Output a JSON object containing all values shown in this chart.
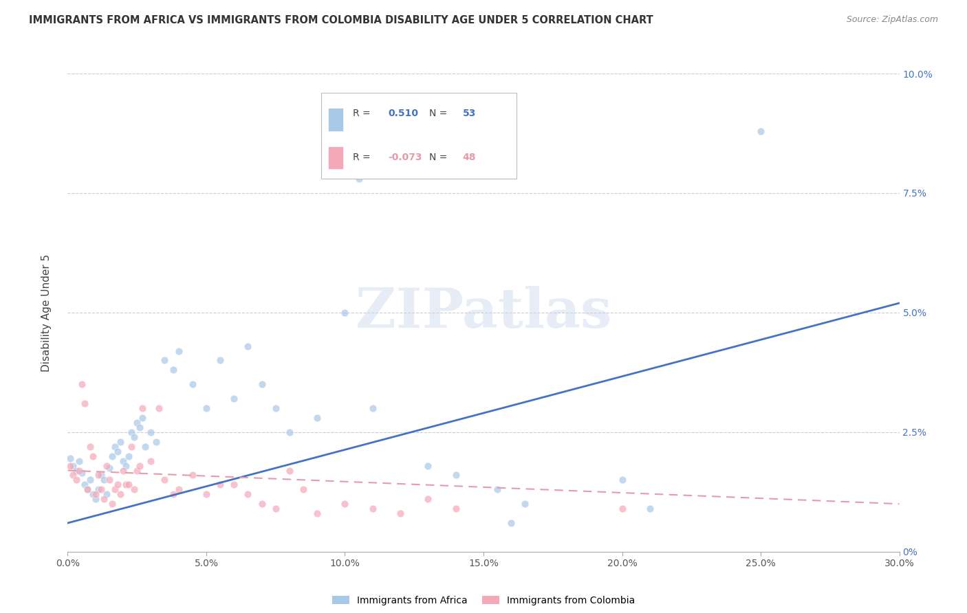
{
  "title": "IMMIGRANTS FROM AFRICA VS IMMIGRANTS FROM COLOMBIA DISABILITY AGE UNDER 5 CORRELATION CHART",
  "source": "Source: ZipAtlas.com",
  "ylabel": "Disability Age Under 5",
  "xlim": [
    0.0,
    0.3
  ],
  "ylim": [
    0.0,
    0.1
  ],
  "xticks": [
    0.0,
    0.05,
    0.1,
    0.15,
    0.2,
    0.25,
    0.3
  ],
  "xticklabels": [
    "0.0%",
    "5.0%",
    "10.0%",
    "15.0%",
    "20.0%",
    "25.0%",
    "30.0%"
  ],
  "yticks": [
    0.0,
    0.025,
    0.05,
    0.075,
    0.1
  ],
  "yticklabels_right": [
    "0%",
    "2.5%",
    "5.0%",
    "7.5%",
    "10.0%"
  ],
  "blue_color": "#A8C8E8",
  "pink_color": "#F4A8B8",
  "blue_line_color": "#4472C4",
  "pink_line_color": "#E89AA8",
  "legend_R_blue": "0.510",
  "legend_N_blue": "53",
  "legend_R_pink": "-0.073",
  "legend_N_pink": "48",
  "watermark": "ZIPatlas",
  "blue_line": [
    0.0,
    0.006,
    0.3,
    0.052
  ],
  "pink_line": [
    0.0,
    0.017,
    0.3,
    0.01
  ],
  "africa_points": [
    [
      0.001,
      0.0195
    ],
    [
      0.002,
      0.018
    ],
    [
      0.003,
      0.017
    ],
    [
      0.004,
      0.019
    ],
    [
      0.005,
      0.0165
    ],
    [
      0.006,
      0.014
    ],
    [
      0.007,
      0.013
    ],
    [
      0.008,
      0.015
    ],
    [
      0.009,
      0.012
    ],
    [
      0.01,
      0.011
    ],
    [
      0.011,
      0.013
    ],
    [
      0.012,
      0.016
    ],
    [
      0.013,
      0.015
    ],
    [
      0.014,
      0.012
    ],
    [
      0.015,
      0.0175
    ],
    [
      0.016,
      0.02
    ],
    [
      0.017,
      0.022
    ],
    [
      0.018,
      0.021
    ],
    [
      0.019,
      0.023
    ],
    [
      0.02,
      0.019
    ],
    [
      0.021,
      0.018
    ],
    [
      0.022,
      0.02
    ],
    [
      0.023,
      0.025
    ],
    [
      0.024,
      0.024
    ],
    [
      0.025,
      0.027
    ],
    [
      0.026,
      0.026
    ],
    [
      0.027,
      0.028
    ],
    [
      0.028,
      0.022
    ],
    [
      0.03,
      0.025
    ],
    [
      0.032,
      0.023
    ],
    [
      0.035,
      0.04
    ],
    [
      0.038,
      0.038
    ],
    [
      0.04,
      0.042
    ],
    [
      0.045,
      0.035
    ],
    [
      0.05,
      0.03
    ],
    [
      0.055,
      0.04
    ],
    [
      0.06,
      0.032
    ],
    [
      0.065,
      0.043
    ],
    [
      0.07,
      0.035
    ],
    [
      0.075,
      0.03
    ],
    [
      0.08,
      0.025
    ],
    [
      0.09,
      0.028
    ],
    [
      0.1,
      0.05
    ],
    [
      0.105,
      0.078
    ],
    [
      0.11,
      0.03
    ],
    [
      0.13,
      0.018
    ],
    [
      0.14,
      0.016
    ],
    [
      0.155,
      0.013
    ],
    [
      0.16,
      0.006
    ],
    [
      0.165,
      0.01
    ],
    [
      0.2,
      0.015
    ],
    [
      0.21,
      0.009
    ],
    [
      0.25,
      0.088
    ]
  ],
  "colombia_points": [
    [
      0.001,
      0.018
    ],
    [
      0.002,
      0.016
    ],
    [
      0.003,
      0.015
    ],
    [
      0.004,
      0.017
    ],
    [
      0.005,
      0.035
    ],
    [
      0.006,
      0.031
    ],
    [
      0.007,
      0.013
    ],
    [
      0.008,
      0.022
    ],
    [
      0.009,
      0.02
    ],
    [
      0.01,
      0.012
    ],
    [
      0.011,
      0.016
    ],
    [
      0.012,
      0.013
    ],
    [
      0.013,
      0.011
    ],
    [
      0.014,
      0.018
    ],
    [
      0.015,
      0.015
    ],
    [
      0.016,
      0.01
    ],
    [
      0.017,
      0.013
    ],
    [
      0.018,
      0.014
    ],
    [
      0.019,
      0.012
    ],
    [
      0.02,
      0.017
    ],
    [
      0.021,
      0.014
    ],
    [
      0.022,
      0.014
    ],
    [
      0.023,
      0.022
    ],
    [
      0.024,
      0.013
    ],
    [
      0.025,
      0.017
    ],
    [
      0.026,
      0.018
    ],
    [
      0.027,
      0.03
    ],
    [
      0.03,
      0.019
    ],
    [
      0.033,
      0.03
    ],
    [
      0.035,
      0.015
    ],
    [
      0.038,
      0.012
    ],
    [
      0.04,
      0.013
    ],
    [
      0.045,
      0.016
    ],
    [
      0.05,
      0.012
    ],
    [
      0.055,
      0.014
    ],
    [
      0.06,
      0.014
    ],
    [
      0.065,
      0.012
    ],
    [
      0.07,
      0.01
    ],
    [
      0.075,
      0.009
    ],
    [
      0.08,
      0.017
    ],
    [
      0.085,
      0.013
    ],
    [
      0.09,
      0.008
    ],
    [
      0.1,
      0.01
    ],
    [
      0.11,
      0.009
    ],
    [
      0.12,
      0.008
    ],
    [
      0.13,
      0.011
    ],
    [
      0.14,
      0.009
    ],
    [
      0.2,
      0.009
    ]
  ]
}
